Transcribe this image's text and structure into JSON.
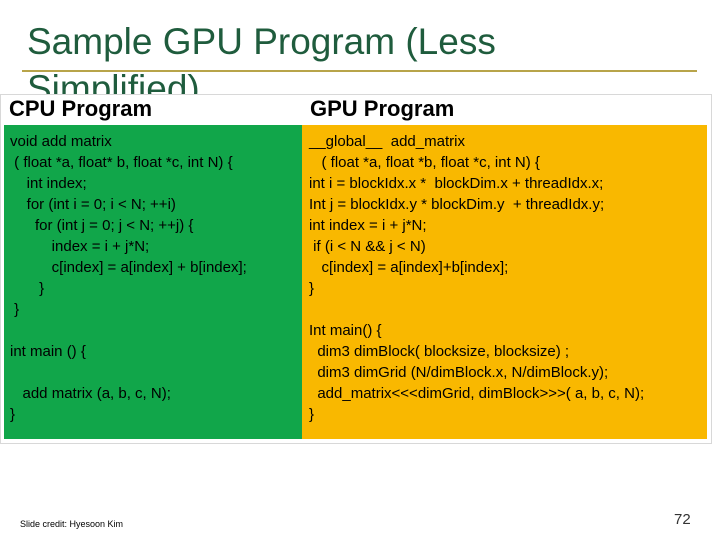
{
  "slide": {
    "title": "Sample GPU Program (Less Simplified)",
    "cpu_heading": "CPU Program",
    "gpu_heading": "GPU Program",
    "cpu_code": "void add matrix\n ( float *a, float* b, float *c, int N) {\n    int index;\n    for (int i = 0; i < N; ++i)\n      for (int j = 0; j < N; ++j) {\n          index = i + j*N;\n          c[index] = a[index] + b[index];\n       }\n }\n\nint main () {\n\n   add matrix (a, b, c, N);\n}",
    "gpu_code": "__global__  add_matrix\n   ( float *a, float *b, float *c, int N) {\nint i = blockIdx.x *  blockDim.x + threadIdx.x;\nInt j = blockIdx.y * blockDim.y  + threadIdx.y;\nint index = i + j*N;\n if (i < N && j < N)\n   c[index] = a[index]+b[index];\n}\n\nInt main() {\n  dim3 dimBlock( blocksize, blocksize) ;\n  dim3 dimGrid (N/dimBlock.x, N/dimBlock.y);\n  add_matrix<<<dimGrid, dimBlock>>>( a, b, c, N);\n}",
    "credit": "Slide credit: Hyesoon Kim",
    "page_number": "72"
  },
  "colors": {
    "cpu_panel": "#11a64a",
    "gpu_panel": "#f9b800",
    "title_color": "#1f5c3d",
    "rule_color": "#b8a44a"
  }
}
